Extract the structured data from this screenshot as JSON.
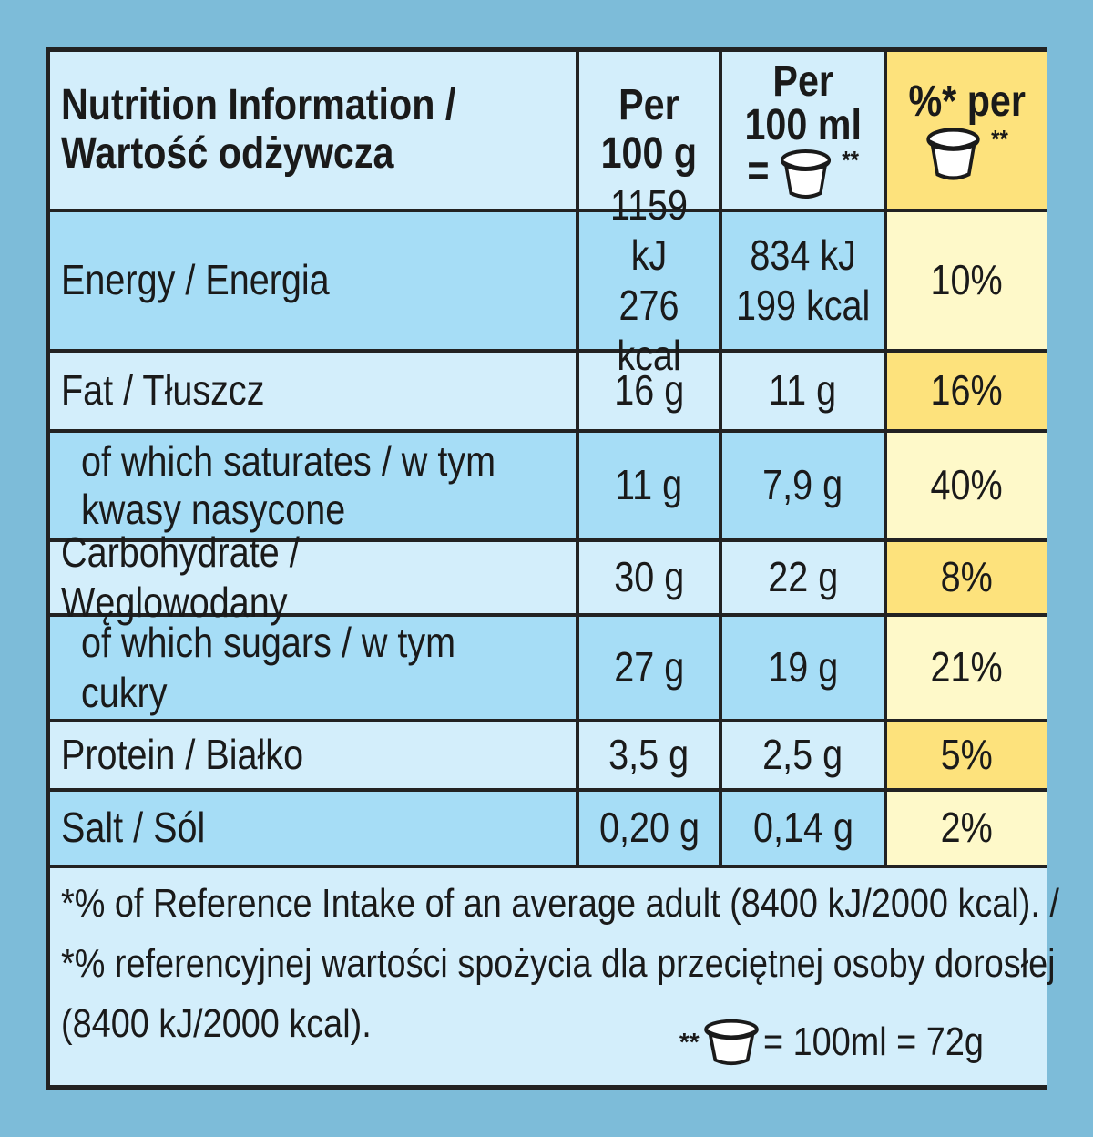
{
  "header": {
    "title_line1": "Nutrition Information /",
    "title_line2": "Wartość odżywcza",
    "col1_line1": "Per",
    "col1_line2": "100 g",
    "col2_line1": "Per",
    "col2_line2": "100 ml",
    "col2_eq": "=",
    "col2_mark": "**",
    "col3_line1": "%* per",
    "col3_mark": "**"
  },
  "rows": [
    {
      "label": "Energy / Energia",
      "per100g": "1159 kJ",
      "per100g_2": "276 kcal",
      "per100ml": "834 kJ",
      "per100ml_2": "199 kcal",
      "ri": "10%"
    },
    {
      "label": "Fat / Tłuszcz",
      "per100g": "16 g",
      "per100ml": "11 g",
      "ri": "16%"
    },
    {
      "label": "of which saturates / w tym",
      "label_2": "kwasy nasycone",
      "per100g": "11 g",
      "per100ml": "7,9 g",
      "ri": "40%"
    },
    {
      "label": "Carbohydrate / Węglowodany",
      "per100g": "30 g",
      "per100ml": "22 g",
      "ri": "8%"
    },
    {
      "label": "of which sugars / w tym cukry",
      "per100g": "27 g",
      "per100ml": "19 g",
      "ri": "21%"
    },
    {
      "label": "Protein / Białko",
      "per100g": "3,5 g",
      "per100ml": "2,5 g",
      "ri": "5%"
    },
    {
      "label": "Salt / Sól",
      "per100g": "0,20 g",
      "per100ml": "0,14 g",
      "ri": "2%"
    }
  ],
  "footnote": {
    "line1": "*% of Reference Intake of an average adult (8400 kJ/2000 kcal). /",
    "line2": "*% referencyjnej wartości spożycia dla przeciętnej osoby dorosłej",
    "line3": "(8400 kJ/2000 kcal).",
    "portion_mark": "**",
    "portion_text": "= 100ml = 72g"
  },
  "colors": {
    "background": "#7dbcd9",
    "light_blue": "#d3eefb",
    "dark_blue": "#a6ddf6",
    "light_yellow": "#fef9c9",
    "dark_yellow": "#fde27c"
  },
  "icons": [
    "ice-cream-tub-icon"
  ]
}
